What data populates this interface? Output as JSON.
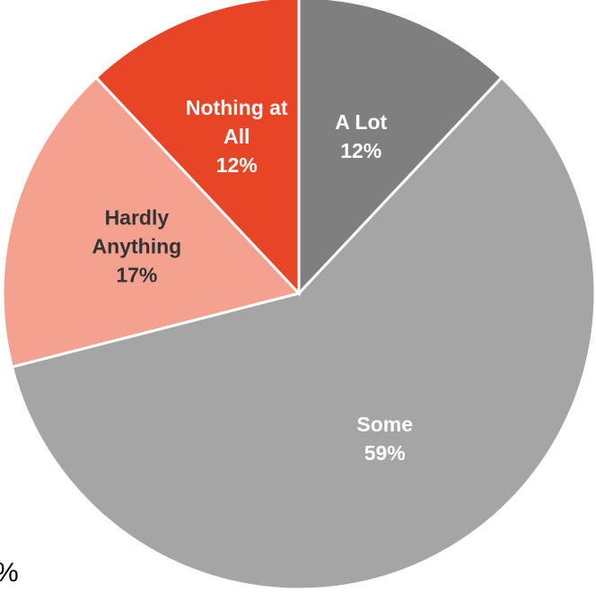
{
  "chart_data": {
    "type": "pie",
    "start_angle_deg": 0,
    "direction": "clockwise",
    "slices": [
      {
        "label_lines": [
          "A Lot"
        ],
        "value": 12,
        "value_label": "12%",
        "color": "#7f7f7f",
        "label_color": "#ffffff"
      },
      {
        "label_lines": [
          "Some"
        ],
        "value": 59,
        "value_label": "59%",
        "color": "#a5a5a5",
        "label_color": "#ffffff"
      },
      {
        "label_lines": [
          "Hardly",
          "Anything"
        ],
        "value": 17,
        "value_label": "17%",
        "color": "#f4a190",
        "label_color": "#333333"
      },
      {
        "label_lines": [
          "Nothing at",
          "All"
        ],
        "value": 12,
        "value_label": "12%",
        "color": "#e84427",
        "label_color": "#ffffff"
      }
    ],
    "legend": "none"
  },
  "stray_text": "%"
}
